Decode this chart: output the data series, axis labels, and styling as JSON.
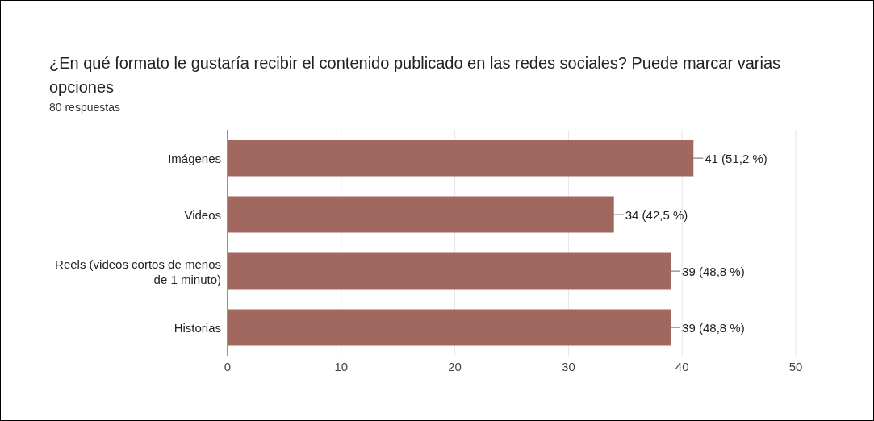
{
  "chart_data": {
    "type": "bar",
    "orientation": "horizontal",
    "title": "¿En qué formato le gustaría recibir el contenido publicado en las redes sociales? Puede marcar varias opciones",
    "subtitle": "80 respuestas",
    "categories": [
      "Imágenes",
      "Videos",
      "Reels (videos cortos de menos de 1 minuto)",
      "Historias"
    ],
    "values": [
      41,
      34,
      39,
      39
    ],
    "value_labels": [
      "41 (51,2 %)",
      "34 (42,5 %)",
      "39 (48,8 %)",
      "39 (48,8 %)"
    ],
    "color": "#a0685f",
    "xlim": [
      0,
      50
    ],
    "xticks": [
      0,
      10,
      20,
      30,
      40,
      50
    ],
    "grid": "x",
    "legend": false
  }
}
